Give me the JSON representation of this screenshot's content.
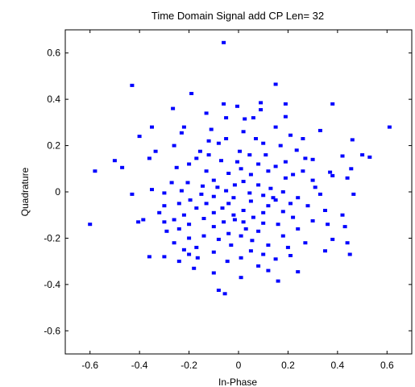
{
  "chart_data": {
    "type": "scatter",
    "title": "Time Domain Signal add CP Len= 32",
    "xlabel": "In-Phase",
    "ylabel": "Quadrature",
    "xlim": [
      -0.7,
      0.7
    ],
    "ylim": [
      -0.7,
      0.7
    ],
    "xticks": [
      "-0.6",
      "-0.4",
      "-0.2",
      "0",
      "0.2",
      "0.4",
      "0.6"
    ],
    "xtick_values": [
      -0.6,
      -0.4,
      -0.2,
      0,
      0.2,
      0.4,
      0.6
    ],
    "yticks": [
      "0.6",
      "0.4",
      "0.2",
      "0",
      "-0.2",
      "-0.4",
      "-0.6"
    ],
    "ytick_values": [
      0.6,
      0.4,
      0.2,
      0,
      -0.2,
      -0.4,
      -0.6
    ],
    "grid": false,
    "marker_color": "#0000ff",
    "points": [
      [
        -0.06,
        0.645
      ],
      [
        -0.43,
        0.46
      ],
      [
        0.15,
        0.465
      ],
      [
        -0.19,
        0.425
      ],
      [
        0.38,
        0.38
      ],
      [
        -0.06,
        0.38
      ],
      [
        0.09,
        0.385
      ],
      [
        0.19,
        0.38
      ],
      [
        -0.005,
        0.37
      ],
      [
        -0.265,
        0.36
      ],
      [
        0.09,
        0.355
      ],
      [
        -0.13,
        0.34
      ],
      [
        -0.05,
        0.32
      ],
      [
        0.19,
        0.325
      ],
      [
        0.025,
        0.315
      ],
      [
        -0.22,
        0.28
      ],
      [
        -0.11,
        0.27
      ],
      [
        0.15,
        0.28
      ],
      [
        0.02,
        0.26
      ],
      [
        0.33,
        0.265
      ],
      [
        -0.35,
        0.28
      ],
      [
        -0.23,
        0.255
      ],
      [
        0.21,
        0.245
      ],
      [
        -0.4,
        0.24
      ],
      [
        -0.05,
        0.23
      ],
      [
        0.07,
        0.23
      ],
      [
        0.26,
        0.23
      ],
      [
        0.46,
        0.225
      ],
      [
        0.61,
        0.28
      ],
      [
        -0.08,
        0.21
      ],
      [
        -0.26,
        0.2
      ],
      [
        0.1,
        0.21
      ],
      [
        -0.155,
        0.175
      ],
      [
        0.005,
        0.175
      ],
      [
        0.235,
        0.18
      ],
      [
        -0.335,
        0.175
      ],
      [
        -0.12,
        0.16
      ],
      [
        0.045,
        0.16
      ],
      [
        0.11,
        0.16
      ],
      [
        0.5,
        0.16
      ],
      [
        -0.17,
        0.145
      ],
      [
        0.27,
        0.145
      ],
      [
        0.42,
        0.155
      ],
      [
        -0.36,
        0.145
      ],
      [
        0.53,
        0.15
      ],
      [
        -0.5,
        0.135
      ],
      [
        -0.07,
        0.135
      ],
      [
        -0.005,
        0.13
      ],
      [
        0.19,
        0.13
      ],
      [
        0.3,
        0.14
      ],
      [
        -0.2,
        0.12
      ],
      [
        0.08,
        0.12
      ],
      [
        -0.25,
        0.105
      ],
      [
        0.01,
        0.1
      ],
      [
        0.15,
        0.11
      ],
      [
        0.455,
        0.1
      ],
      [
        -0.58,
        0.09
      ],
      [
        -0.47,
        0.105
      ],
      [
        0.12,
        0.09
      ],
      [
        0.26,
        0.09
      ],
      [
        0.37,
        0.085
      ],
      [
        -0.13,
        0.09
      ],
      [
        -0.04,
        0.08
      ],
      [
        0.05,
        0.075
      ],
      [
        0.19,
        0.06
      ],
      [
        -0.1,
        0.05
      ],
      [
        0.38,
        0.07
      ],
      [
        0.22,
        0.075
      ],
      [
        0.44,
        0.06
      ],
      [
        0.02,
        0.045
      ],
      [
        -0.205,
        0.04
      ],
      [
        -0.27,
        0.04
      ],
      [
        -0.015,
        0.03
      ],
      [
        0.08,
        0.03
      ],
      [
        0.3,
        0.05
      ],
      [
        0.31,
        0.02
      ],
      [
        -0.145,
        0.025
      ],
      [
        -0.085,
        0.02
      ],
      [
        0.13,
        0.015
      ],
      [
        -0.35,
        0.01
      ],
      [
        -0.23,
        0.005
      ],
      [
        -0.05,
        0.005
      ],
      [
        0.045,
        -0.005
      ],
      [
        0.18,
        0.0
      ],
      [
        -0.43,
        -0.01
      ],
      [
        -0.3,
        -0.005
      ],
      [
        -0.15,
        -0.01
      ],
      [
        0.33,
        -0.01
      ],
      [
        0.465,
        -0.01
      ],
      [
        0.1,
        -0.015
      ],
      [
        -0.1,
        -0.02
      ],
      [
        -0.02,
        -0.025
      ],
      [
        0.24,
        -0.025
      ],
      [
        -0.195,
        -0.035
      ],
      [
        0.15,
        -0.035
      ],
      [
        -0.24,
        -0.05
      ],
      [
        0.05,
        -0.04
      ],
      [
        -0.04,
        -0.05
      ],
      [
        -0.13,
        -0.05
      ],
      [
        0.21,
        -0.05
      ],
      [
        -0.3,
        -0.06
      ],
      [
        0.12,
        -0.06
      ],
      [
        0.28,
        -0.06
      ],
      [
        -0.17,
        -0.07
      ],
      [
        -0.065,
        -0.07
      ],
      [
        0.02,
        -0.08
      ],
      [
        0.1,
        -0.09
      ],
      [
        0.18,
        -0.085
      ],
      [
        -0.1,
        -0.09
      ],
      [
        0.35,
        -0.08
      ],
      [
        -0.22,
        -0.1
      ],
      [
        -0.02,
        -0.1
      ],
      [
        0.06,
        -0.11
      ],
      [
        -0.385,
        -0.12
      ],
      [
        -0.26,
        -0.12
      ],
      [
        -0.14,
        -0.115
      ],
      [
        0.22,
        -0.11
      ],
      [
        0.42,
        -0.1
      ],
      [
        -0.3,
        -0.13
      ],
      [
        -0.06,
        -0.13
      ],
      [
        0.02,
        -0.13
      ],
      [
        0.1,
        -0.135
      ],
      [
        0.3,
        -0.125
      ],
      [
        -0.6,
        -0.14
      ],
      [
        -0.405,
        -0.13
      ],
      [
        -0.2,
        -0.14
      ],
      [
        0.16,
        -0.14
      ],
      [
        0.36,
        -0.14
      ],
      [
        -0.1,
        -0.15
      ],
      [
        0.03,
        -0.16
      ],
      [
        -0.24,
        -0.16
      ],
      [
        0.24,
        -0.16
      ],
      [
        0.43,
        -0.15
      ],
      [
        -0.29,
        -0.17
      ],
      [
        -0.04,
        -0.18
      ],
      [
        0.08,
        -0.17
      ],
      [
        -0.14,
        -0.19
      ],
      [
        0.18,
        -0.19
      ],
      [
        0.01,
        -0.19
      ],
      [
        -0.2,
        -0.2
      ],
      [
        -0.08,
        -0.205
      ],
      [
        0.38,
        -0.205
      ],
      [
        0.055,
        -0.21
      ],
      [
        -0.26,
        -0.22
      ],
      [
        0.27,
        -0.22
      ],
      [
        0.12,
        -0.23
      ],
      [
        0.44,
        -0.22
      ],
      [
        -0.03,
        -0.23
      ],
      [
        -0.17,
        -0.24
      ],
      [
        0.2,
        -0.24
      ],
      [
        -0.22,
        -0.25
      ],
      [
        0.05,
        -0.255
      ],
      [
        0.35,
        -0.255
      ],
      [
        -0.1,
        -0.26
      ],
      [
        -0.2,
        -0.27
      ],
      [
        -0.3,
        -0.28
      ],
      [
        0.1,
        -0.27
      ],
      [
        0.21,
        -0.275
      ],
      [
        -0.36,
        -0.28
      ],
      [
        0.01,
        -0.285
      ],
      [
        -0.165,
        -0.285
      ],
      [
        0.15,
        -0.29
      ],
      [
        0.45,
        -0.27
      ],
      [
        -0.045,
        -0.3
      ],
      [
        -0.24,
        -0.3
      ],
      [
        0.08,
        -0.32
      ],
      [
        -0.18,
        -0.33
      ],
      [
        0.12,
        -0.34
      ],
      [
        -0.1,
        -0.35
      ],
      [
        0.24,
        -0.345
      ],
      [
        0.01,
        -0.37
      ],
      [
        0.16,
        -0.385
      ],
      [
        -0.08,
        -0.425
      ],
      [
        -0.055,
        -0.44
      ],
      [
        -0.015,
        -0.12
      ],
      [
        0.14,
        -0.025
      ],
      [
        -0.12,
        0.22
      ],
      [
        0.17,
        0.2
      ],
      [
        -0.32,
        -0.09
      ],
      [
        0.06,
        0.32
      ]
    ]
  }
}
